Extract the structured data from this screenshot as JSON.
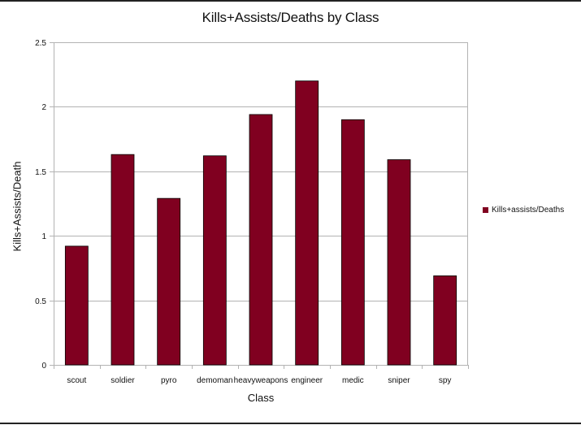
{
  "chart_data": {
    "type": "bar",
    "title": "Kills+Assists/Deaths by Class",
    "xlabel": "Class",
    "ylabel": "Kills+Assists/Death",
    "categories": [
      "scout",
      "soldier",
      "pyro",
      "demoman",
      "heavyweapons",
      "engineer",
      "medic",
      "sniper",
      "spy"
    ],
    "series": [
      {
        "name": "Kills+assists/Deaths",
        "values": [
          0.92,
          1.63,
          1.29,
          1.62,
          1.94,
          2.2,
          1.9,
          1.59,
          0.69
        ]
      }
    ],
    "ylim": [
      0,
      2.5
    ],
    "yticks": [
      "0",
      "0.5",
      "1",
      "1.5",
      "2",
      "2.5"
    ],
    "grid": true,
    "legend": "right",
    "bar_color": "#800020"
  }
}
